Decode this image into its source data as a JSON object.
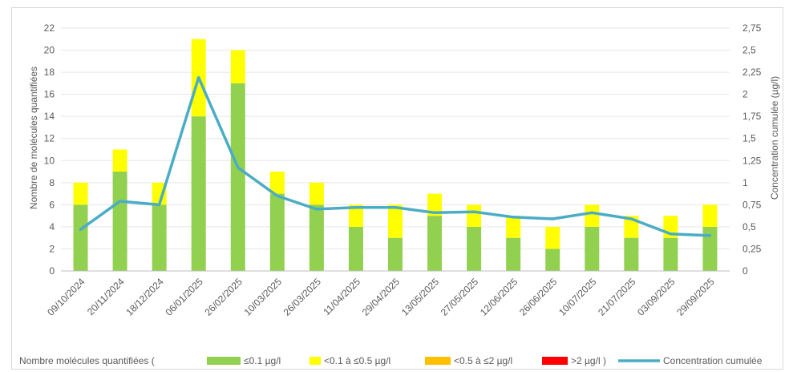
{
  "chart_data": {
    "type": "bar",
    "stacked": true,
    "categories": [
      "09/10/2024",
      "20/11/2024",
      "18/12/2024",
      "06/01/2025",
      "26/02/2025",
      "10/03/2025",
      "26/03/2025",
      "11/04/2025",
      "29/04/2025",
      "13/05/2025",
      "27/05/2025",
      "12/06/2025",
      "26/06/2025",
      "10/07/2025",
      "21/07/2025",
      "03/09/2025",
      "29/09/2025"
    ],
    "series": [
      {
        "name": "≤0.1 µg/l",
        "color": "#92d050",
        "values": [
          6,
          9,
          6,
          14,
          17,
          7,
          6,
          4,
          3,
          5,
          4,
          3,
          2,
          4,
          3,
          3,
          4
        ]
      },
      {
        "name": "<0.1 à ≤0.5 µg/l",
        "color": "#ffff00",
        "values": [
          2,
          2,
          2,
          7,
          3,
          2,
          2,
          2,
          3,
          2,
          2,
          2,
          2,
          2,
          2,
          2,
          2
        ]
      },
      {
        "name": "<0.5 à ≤2 µg/l",
        "color": "#ffc000",
        "values": [
          0,
          0,
          0,
          0,
          0,
          0,
          0,
          0,
          0,
          0,
          0,
          0,
          0,
          0,
          0,
          0,
          0
        ]
      },
      {
        "name": ">2 µg/l )",
        "color": "#ff0000",
        "values": [
          0,
          0,
          0,
          0,
          0,
          0,
          0,
          0,
          0,
          0,
          0,
          0,
          0,
          0,
          0,
          0,
          0
        ]
      }
    ],
    "line_series": {
      "name": "Concentration cumulée",
      "color": "#4bacc6",
      "axis": "right",
      "values": [
        0.47,
        0.79,
        0.75,
        2.19,
        1.17,
        0.85,
        0.7,
        0.72,
        0.72,
        0.66,
        0.67,
        0.61,
        0.59,
        0.66,
        0.59,
        0.42,
        0.4
      ]
    },
    "ylabel": "Nombre de molécules quantifiées",
    "y2label": "Concentration cumulée (µg/l)",
    "ylim": [
      0,
      22
    ],
    "y2lim": [
      0,
      2.75
    ],
    "yticks": [
      "0",
      "2",
      "4",
      "6",
      "8",
      "10",
      "12",
      "14",
      "16",
      "18",
      "20",
      "22"
    ],
    "y2ticks": [
      "0",
      "0,25",
      "0,5",
      "0,75",
      "1",
      "1,25",
      "1,5",
      "1,75",
      "2",
      "2,25",
      "2,5",
      "2,75"
    ],
    "legend_prefix": "Nombre molécules quantifiées (",
    "legend_position": "bottom",
    "grid": true
  }
}
